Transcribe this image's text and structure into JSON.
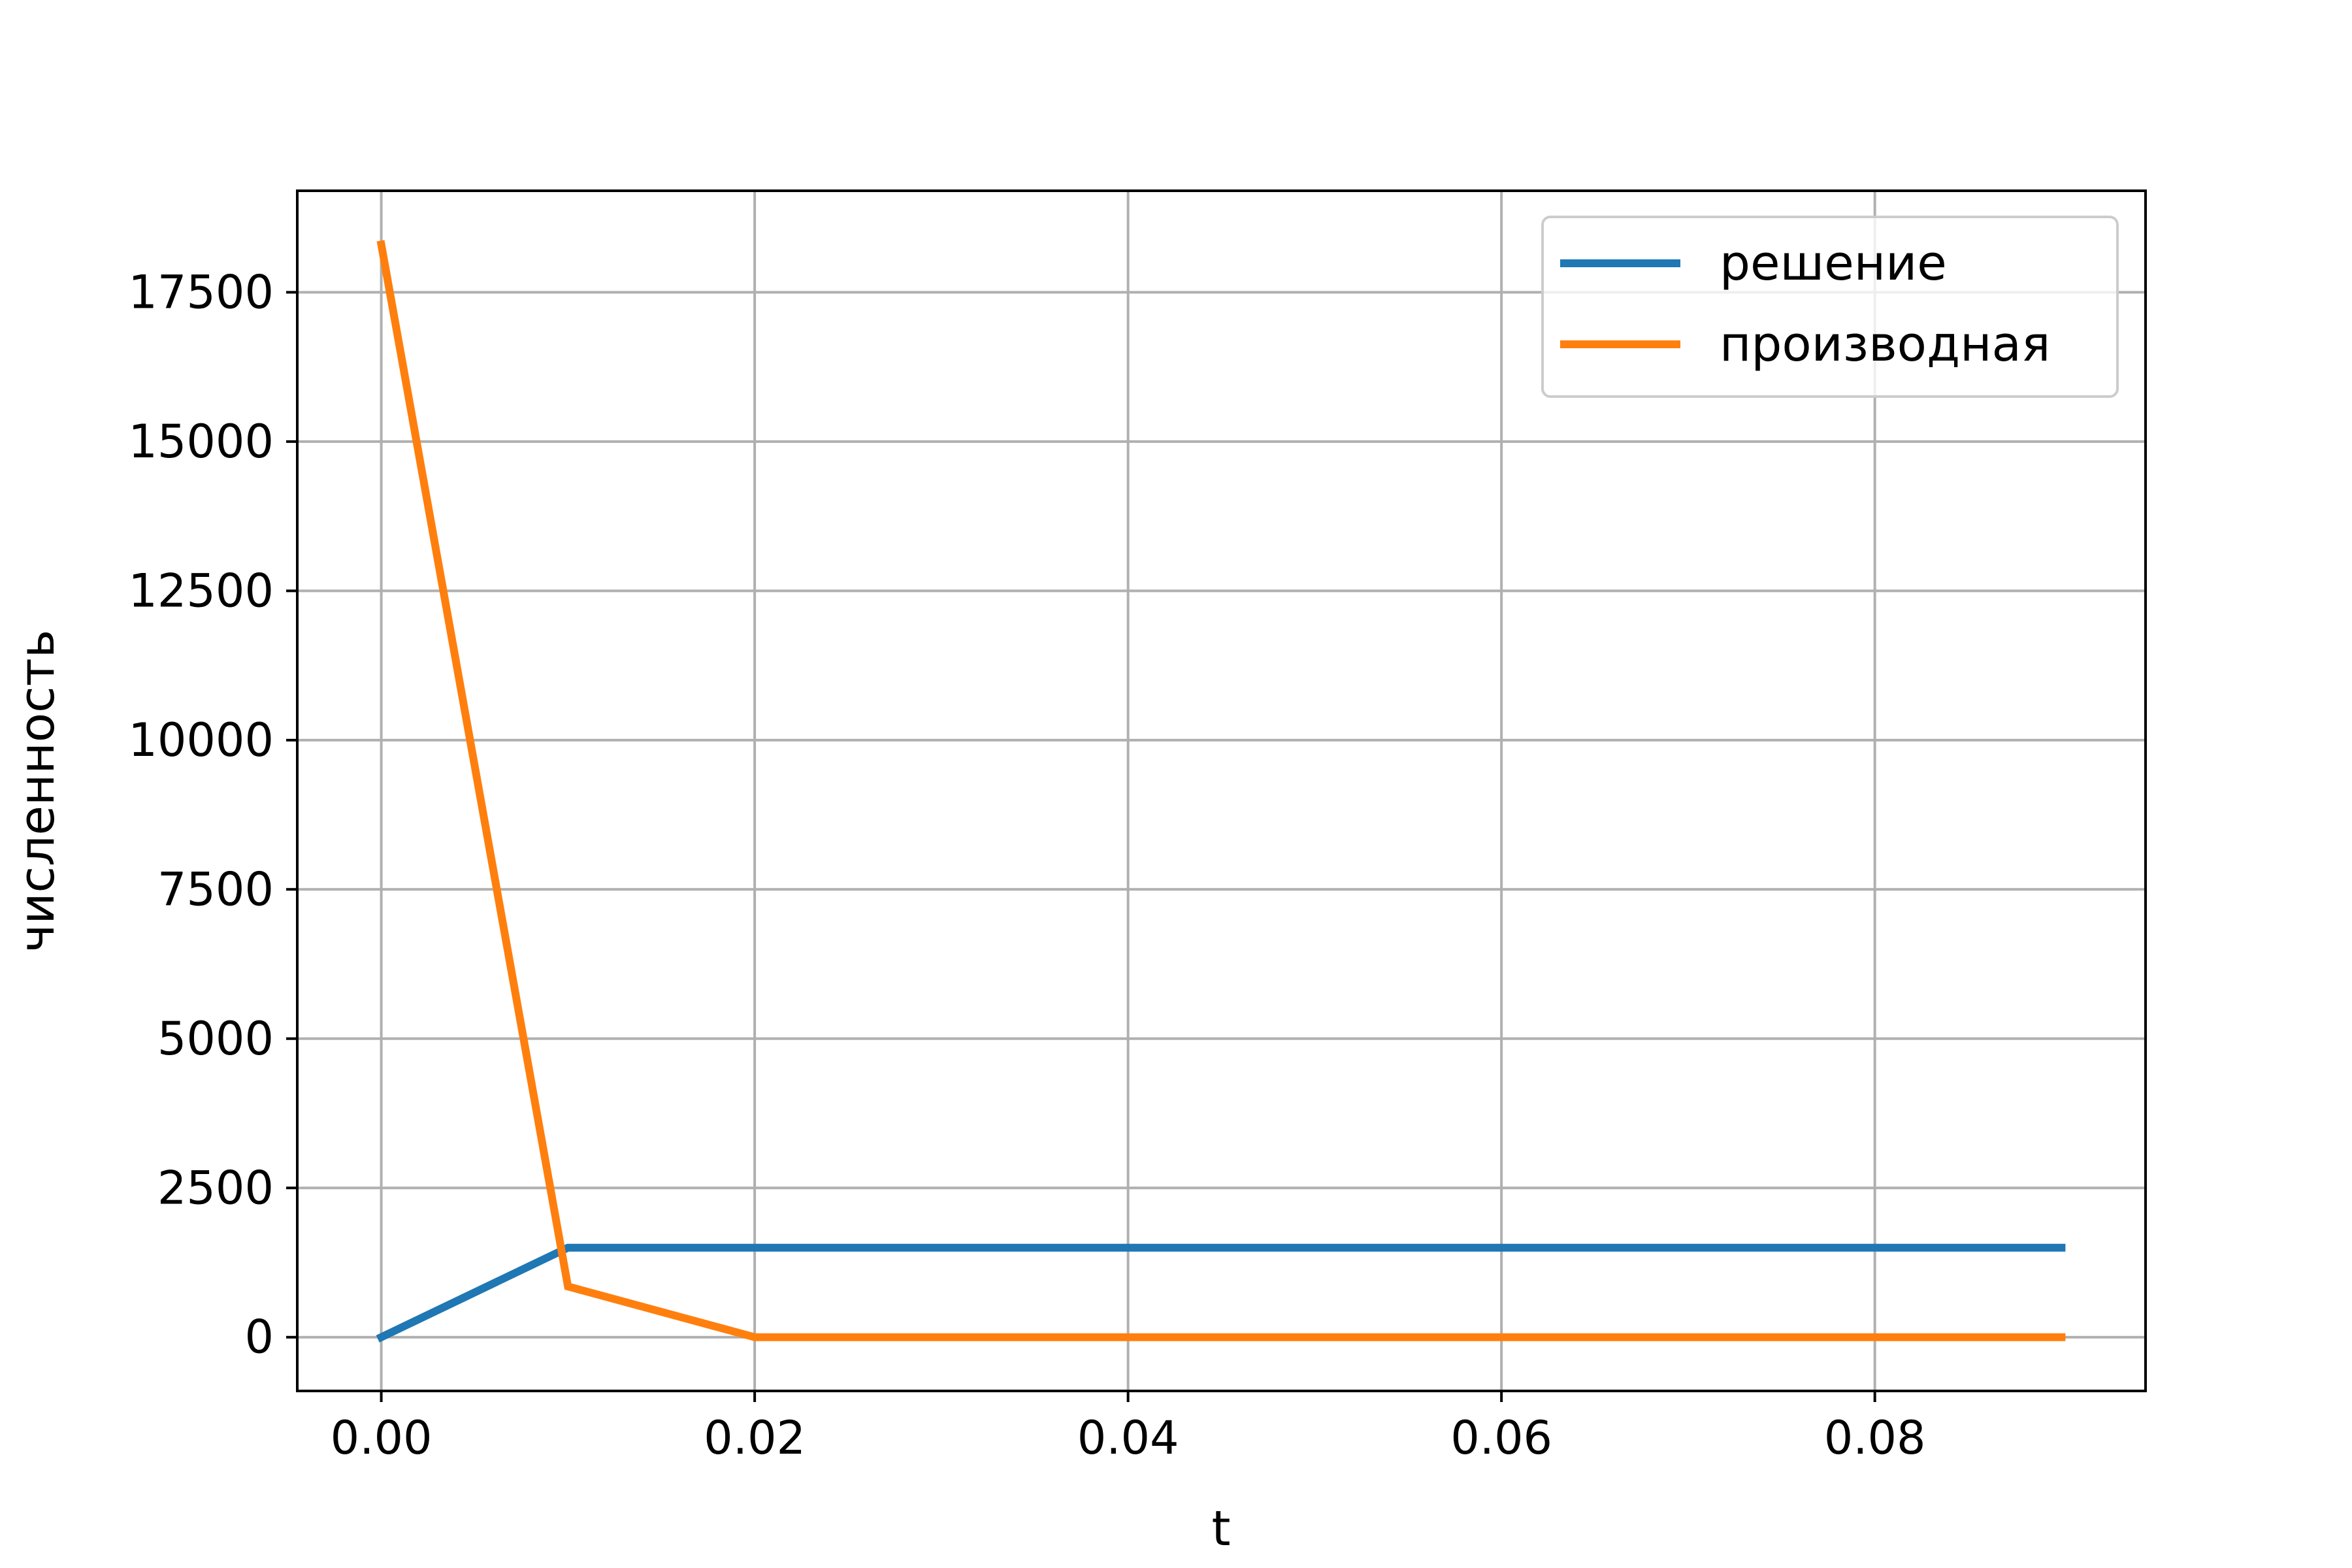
{
  "chart_data": {
    "type": "line",
    "title": "",
    "xlabel": "t",
    "ylabel": "численность",
    "xlim": [
      -0.0045,
      0.0945
    ],
    "ylim": [
      -900,
      19200
    ],
    "xticks": [
      0.0,
      0.02,
      0.04,
      0.06,
      0.08
    ],
    "xtick_labels": [
      "0.00",
      "0.02",
      "0.04",
      "0.06",
      "0.08"
    ],
    "yticks": [
      0,
      2500,
      5000,
      7500,
      10000,
      12500,
      15000,
      17500
    ],
    "ytick_labels": [
      "0",
      "2500",
      "5000",
      "7500",
      "10000",
      "12500",
      "15000",
      "17500"
    ],
    "grid": true,
    "legend_position": "top-right",
    "x": [
      0.0,
      0.01,
      0.02,
      0.03,
      0.04,
      0.05,
      0.06,
      0.07,
      0.08,
      0.09
    ],
    "series": [
      {
        "name": "решение",
        "color": "#1f77b4",
        "values": [
          0,
          1500,
          1500,
          1500,
          1500,
          1500,
          1500,
          1500,
          1500,
          1500
        ]
      },
      {
        "name": "производная",
        "color": "#ff7f0e",
        "values": [
          18300,
          850,
          0,
          0,
          0,
          0,
          0,
          0,
          0,
          0
        ]
      }
    ]
  }
}
